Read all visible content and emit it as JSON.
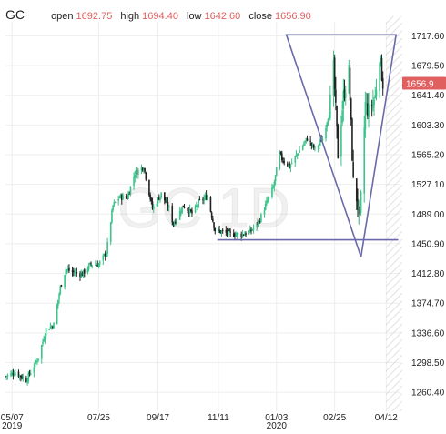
{
  "header": {
    "symbol": "GC",
    "open_label": "open",
    "open": "1692.75",
    "high_label": "high",
    "high": "1694.40",
    "low_label": "low",
    "low": "1642.60",
    "close_label": "close",
    "close": "1656.90"
  },
  "watermark": "GC 1D",
  "colors": {
    "up": "#3cc38a",
    "down": "#222222",
    "accent": "#e06060",
    "pattern": "#6a6aaa",
    "grid": "#eeeeee",
    "hatch": "#d4d4d4"
  },
  "chart_data": {
    "type": "candlestick",
    "title": "",
    "xlabel": "",
    "ylabel": "",
    "ylim": [
      1236,
      1736
    ],
    "y_ticks": [
      "1717.60",
      "1679.50",
      "1641.40",
      "1603.30",
      "1565.20",
      "1527.10",
      "1489.00",
      "1450.90",
      "1412.80",
      "1374.70",
      "1336.60",
      "1298.50",
      "1260.40"
    ],
    "x_ticks": [
      {
        "label": "05/07",
        "sub": "2019"
      },
      {
        "label": "07/25",
        "sub": ""
      },
      {
        "label": "09/17",
        "sub": ""
      },
      {
        "label": "11/11",
        "sub": ""
      },
      {
        "label": "01/03",
        "sub": "2020"
      },
      {
        "label": "02/25",
        "sub": ""
      },
      {
        "label": "04/12",
        "sub": ""
      }
    ],
    "last_price": "1656.9",
    "x_range": [
      "2019-05-01",
      "2020-04-25"
    ],
    "price_path": [
      [
        "2019-05-01",
        1281
      ],
      [
        "2019-05-10",
        1286
      ],
      [
        "2019-05-20",
        1276
      ],
      [
        "2019-05-31",
        1305
      ],
      [
        "2019-06-07",
        1341
      ],
      [
        "2019-06-14",
        1347
      ],
      [
        "2019-06-20",
        1395
      ],
      [
        "2019-06-25",
        1418
      ],
      [
        "2019-07-02",
        1414
      ],
      [
        "2019-07-10",
        1412
      ],
      [
        "2019-07-18",
        1425
      ],
      [
        "2019-07-25",
        1424
      ],
      [
        "2019-08-01",
        1440
      ],
      [
        "2019-08-07",
        1500
      ],
      [
        "2019-08-13",
        1511
      ],
      [
        "2019-08-20",
        1510
      ],
      [
        "2019-08-27",
        1542
      ],
      [
        "2019-09-04",
        1550
      ],
      [
        "2019-09-12",
        1496
      ],
      [
        "2019-09-20",
        1515
      ],
      [
        "2019-09-27",
        1496
      ],
      [
        "2019-10-01",
        1476
      ],
      [
        "2019-10-10",
        1500
      ],
      [
        "2019-10-18",
        1490
      ],
      [
        "2019-10-25",
        1505
      ],
      [
        "2019-11-01",
        1512
      ],
      [
        "2019-11-08",
        1468
      ],
      [
        "2019-11-15",
        1466
      ],
      [
        "2019-11-22",
        1463
      ],
      [
        "2019-12-02",
        1463
      ],
      [
        "2019-12-10",
        1466
      ],
      [
        "2019-12-18",
        1479
      ],
      [
        "2019-12-24",
        1500
      ],
      [
        "2019-12-31",
        1523
      ],
      [
        "2020-01-06",
        1566
      ],
      [
        "2020-01-08",
        1560
      ],
      [
        "2020-01-15",
        1550
      ],
      [
        "2020-01-24",
        1571
      ],
      [
        "2020-01-31",
        1586
      ],
      [
        "2020-02-07",
        1572
      ],
      [
        "2020-02-14",
        1586
      ],
      [
        "2020-02-20",
        1620
      ],
      [
        "2020-02-24",
        1676
      ],
      [
        "2020-02-28",
        1566
      ],
      [
        "2020-03-04",
        1640
      ],
      [
        "2020-03-09",
        1672
      ],
      [
        "2020-03-13",
        1530
      ],
      [
        "2020-03-16",
        1510
      ],
      [
        "2020-03-19",
        1478
      ],
      [
        "2020-03-24",
        1630
      ],
      [
        "2020-03-27",
        1620
      ],
      [
        "2020-04-02",
        1640
      ],
      [
        "2020-04-06",
        1693
      ],
      [
        "2020-04-09",
        1656.9
      ]
    ],
    "drawings": {
      "triangle": [
        [
          "2020-01-12",
          1719
        ],
        [
          "2020-04-21",
          1719
        ],
        [
          "2020-03-20",
          1434
        ]
      ],
      "support_line": [
        [
          "2019-11-10",
          1456
        ],
        [
          "2020-04-23",
          1456
        ]
      ]
    }
  }
}
